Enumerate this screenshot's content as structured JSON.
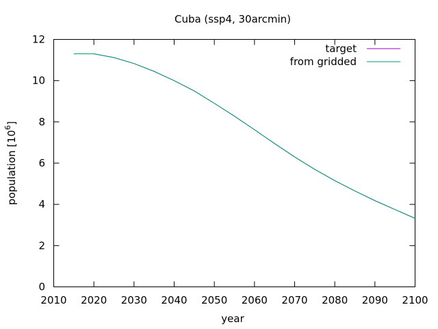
{
  "chart_data": {
    "type": "line",
    "title": "Cuba (ssp4, 30arcmin)",
    "xlabel": "year",
    "ylabel": "population [10^6]",
    "ylabel_parts": {
      "base": "population [10",
      "sup": "6",
      "close": "]"
    },
    "xlim": [
      2010,
      2100
    ],
    "ylim": [
      0,
      12
    ],
    "x_ticks": [
      2010,
      2020,
      2030,
      2040,
      2050,
      2060,
      2070,
      2080,
      2090,
      2100
    ],
    "y_ticks": [
      0,
      2,
      4,
      6,
      8,
      10,
      12
    ],
    "grid": false,
    "legend_position": "top-right",
    "x": [
      2015,
      2020,
      2025,
      2030,
      2035,
      2040,
      2045,
      2050,
      2055,
      2060,
      2065,
      2070,
      2075,
      2080,
      2085,
      2090,
      2095,
      2100
    ],
    "series": [
      {
        "name": "target",
        "color": "#9400d3",
        "values": [
          11.3,
          11.3,
          11.12,
          10.83,
          10.45,
          10.0,
          9.5,
          8.9,
          8.28,
          7.62,
          6.95,
          6.3,
          5.7,
          5.15,
          4.65,
          4.18,
          3.75,
          3.32
        ]
      },
      {
        "name": "from gridded",
        "color": "#009e73",
        "values": [
          11.3,
          11.3,
          11.12,
          10.83,
          10.45,
          10.0,
          9.5,
          8.9,
          8.28,
          7.62,
          6.95,
          6.3,
          5.7,
          5.15,
          4.65,
          4.18,
          3.75,
          3.32
        ]
      }
    ]
  }
}
